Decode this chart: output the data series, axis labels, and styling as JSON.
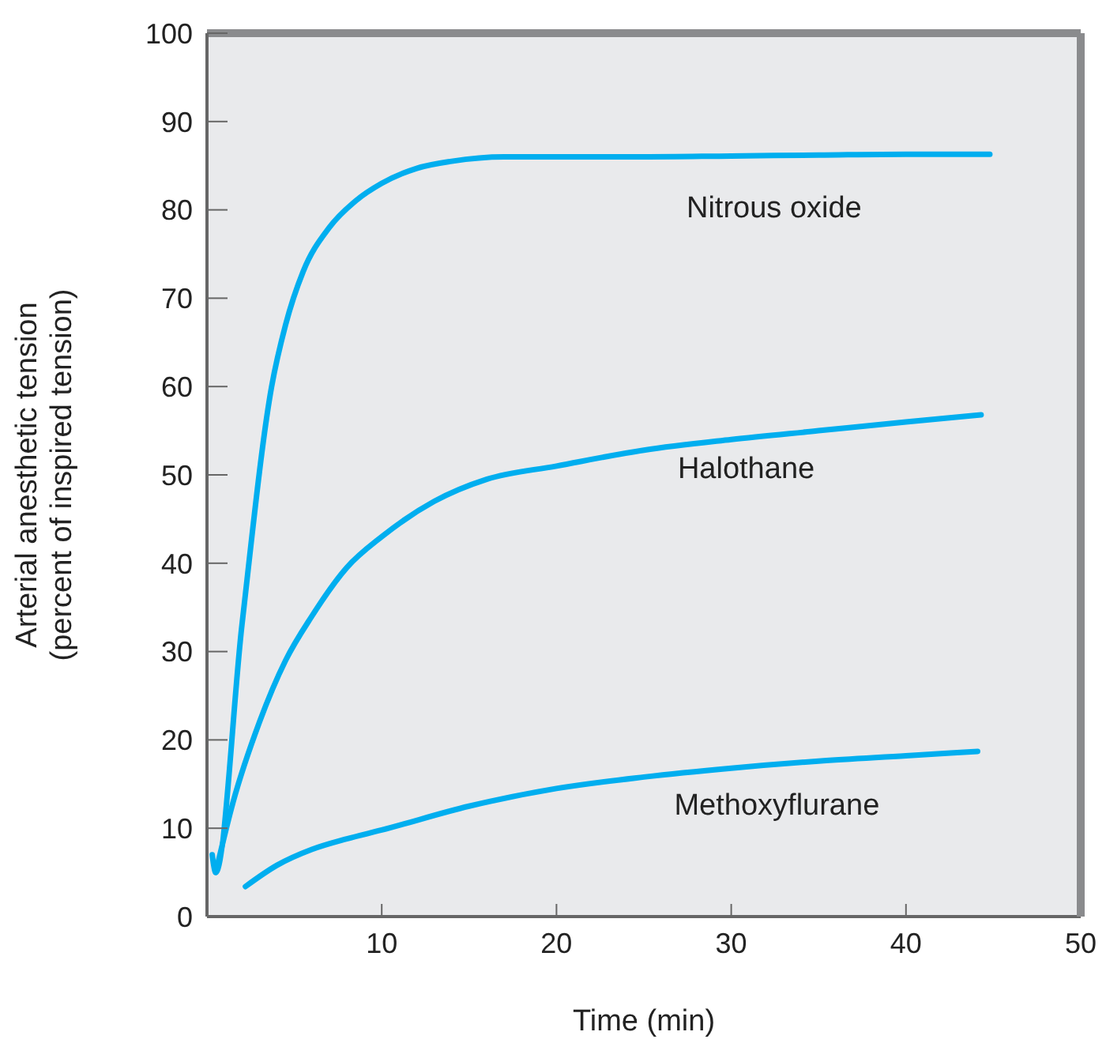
{
  "chart_data": {
    "type": "line",
    "xlabel": "Time (min)",
    "ylabel": "Arterial anesthetic tension\n(percent of inspired tension)",
    "xlim": [
      0,
      50
    ],
    "xticks": [
      {
        "value": 0,
        "label": null
      },
      10,
      20,
      30,
      40,
      50
    ],
    "ylim": [
      0,
      100
    ],
    "yticks": [
      0,
      10,
      20,
      30,
      40,
      50,
      60,
      70,
      80,
      90,
      100
    ],
    "grid": false,
    "marker": "none",
    "line_style": "solid",
    "series": [
      {
        "name": "Nitrous oxide",
        "color": "#00aeef",
        "x": [
          0.3,
          0.5,
          2,
          3.7,
          4.5,
          5.5,
          7,
          8.5,
          10,
          12,
          14,
          17,
          20,
          25,
          30,
          35,
          40,
          44.8
        ],
        "values": [
          7,
          5,
          33,
          60,
          67,
          73,
          78,
          81,
          83,
          84.7,
          85.5,
          86,
          86,
          86,
          86.1,
          86.2,
          86.3,
          86.3
        ]
      },
      {
        "name": "Halothane",
        "color": "#00aeef",
        "x": [
          0.5,
          1.5,
          3,
          4.5,
          6,
          8,
          10,
          13,
          16,
          20,
          25,
          30,
          35,
          40,
          44.3
        ],
        "values": [
          5,
          13,
          22,
          29,
          34,
          39.5,
          43,
          47,
          49.5,
          51,
          52.8,
          54,
          55,
          56,
          56.8
        ]
      },
      {
        "name": "Methoxyflurane",
        "color": "#00aeef",
        "x": [
          2.2,
          4,
          6,
          8,
          10,
          15,
          20,
          25,
          30,
          35,
          40,
          44.1
        ],
        "values": [
          3.4,
          5.8,
          7.6,
          8.8,
          9.8,
          12.5,
          14.5,
          15.8,
          16.8,
          17.6,
          18.2,
          18.7
        ]
      }
    ]
  }
}
